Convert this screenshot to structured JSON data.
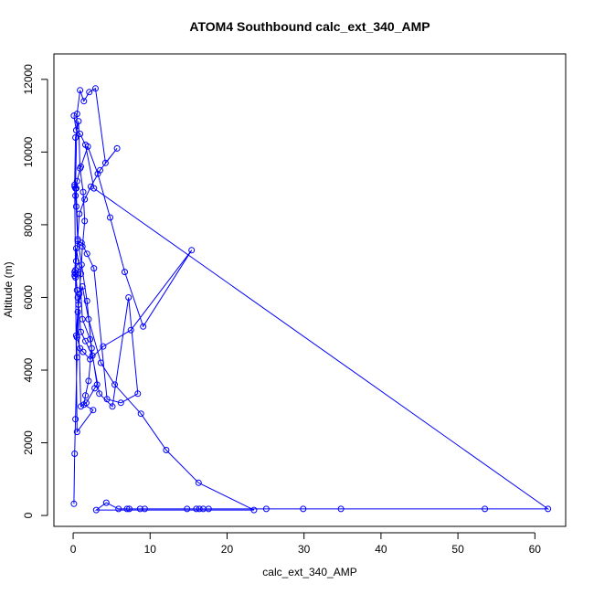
{
  "chart_data": {
    "type": "line",
    "title": "ATOM4 Southbound calc_ext_340_AMP",
    "xlabel": "calc_ext_340_AMP",
    "ylabel": "Altitude (m)",
    "xlim": [
      -2.5,
      64
    ],
    "ylim": [
      -300,
      12700
    ],
    "xticks": [
      0,
      10,
      20,
      30,
      40,
      50,
      60
    ],
    "yticks": [
      0,
      2000,
      4000,
      6000,
      8000,
      10000,
      12000
    ],
    "grid": false,
    "colors": {
      "series": "#0000ff",
      "axis": "#000000"
    },
    "series": [
      {
        "marker": "open-circle",
        "x": [
          0.1,
          0.2,
          0.3,
          0.5,
          0.4,
          0.6,
          0.8,
          1.0,
          1.2,
          1.5,
          1.3,
          0.9,
          0.7,
          0.3,
          0.2,
          0.4,
          0.6,
          1.1,
          1.8,
          2.4,
          2.0,
          1.6,
          1.4,
          2.6,
          0.5,
          0.3,
          0.2,
          0.4,
          0.8,
          1.2,
          2.2,
          3.1,
          2.8,
          1.7,
          1.0,
          0.6,
          0.3,
          0.2,
          0.3,
          0.5,
          0.9,
          1.4,
          2.1,
          2.9,
          4.2,
          5.7,
          3.5,
          2.3,
          1.5,
          0.8,
          0.4,
          0.2,
          0.3,
          0.5,
          1.0,
          1.6,
          2.5,
          3.4,
          5.1,
          7.2,
          8.4,
          6.2,
          4.4,
          2.7,
          1.8,
          1.1,
          0.6,
          0.4,
          0.3,
          0.5,
          1.0,
          1.9,
          3.2,
          4.8,
          6.7,
          9.1,
          15.4,
          7.5,
          3.9,
          2.2,
          1.3,
          0.9,
          0.5,
          0.7,
          1.2,
          2.0,
          3.6,
          5.4,
          8.8,
          12.1,
          16.3,
          23.5,
          3.0,
          4.3,
          5.9,
          7.0,
          7.3,
          8.7,
          9.3,
          14.8,
          16.0,
          16.4,
          16.9,
          17.6,
          25.1,
          29.9,
          34.8,
          53.5,
          61.7,
          2.7,
          1.6,
          0.9,
          0.4,
          0.1
        ],
        "y": [
          320,
          1700,
          2650,
          4350,
          4950,
          5600,
          6100,
          6650,
          7400,
          8100,
          8900,
          9550,
          10850,
          10400,
          9100,
          9000,
          7600,
          6900,
          5900,
          4600,
          3700,
          3300,
          3050,
          2900,
          2300,
          6650,
          6700,
          7350,
          6850,
          5400,
          4850,
          3600,
          3500,
          3100,
          3000,
          6000,
          6750,
          9050,
          9000,
          11050,
          11700,
          11400,
          11650,
          11750,
          9700,
          10100,
          9500,
          9050,
          8700,
          8300,
          7000,
          6600,
          6550,
          6200,
          5050,
          4800,
          4400,
          3350,
          3000,
          6000,
          3350,
          3100,
          3200,
          6800,
          7200,
          7500,
          7550,
          8500,
          8800,
          9200,
          9600,
          10150,
          9400,
          8200,
          6700,
          5200,
          7300,
          5100,
          4650,
          4300,
          4500,
          4600,
          4900,
          5800,
          6300,
          5400,
          4200,
          3600,
          2800,
          1800,
          900,
          150,
          150,
          350,
          180,
          180,
          180,
          180,
          180,
          180,
          180,
          180,
          180,
          180,
          180,
          180,
          180,
          180,
          180,
          9000,
          10200,
          10500,
          10600,
          11000
        ]
      }
    ]
  }
}
